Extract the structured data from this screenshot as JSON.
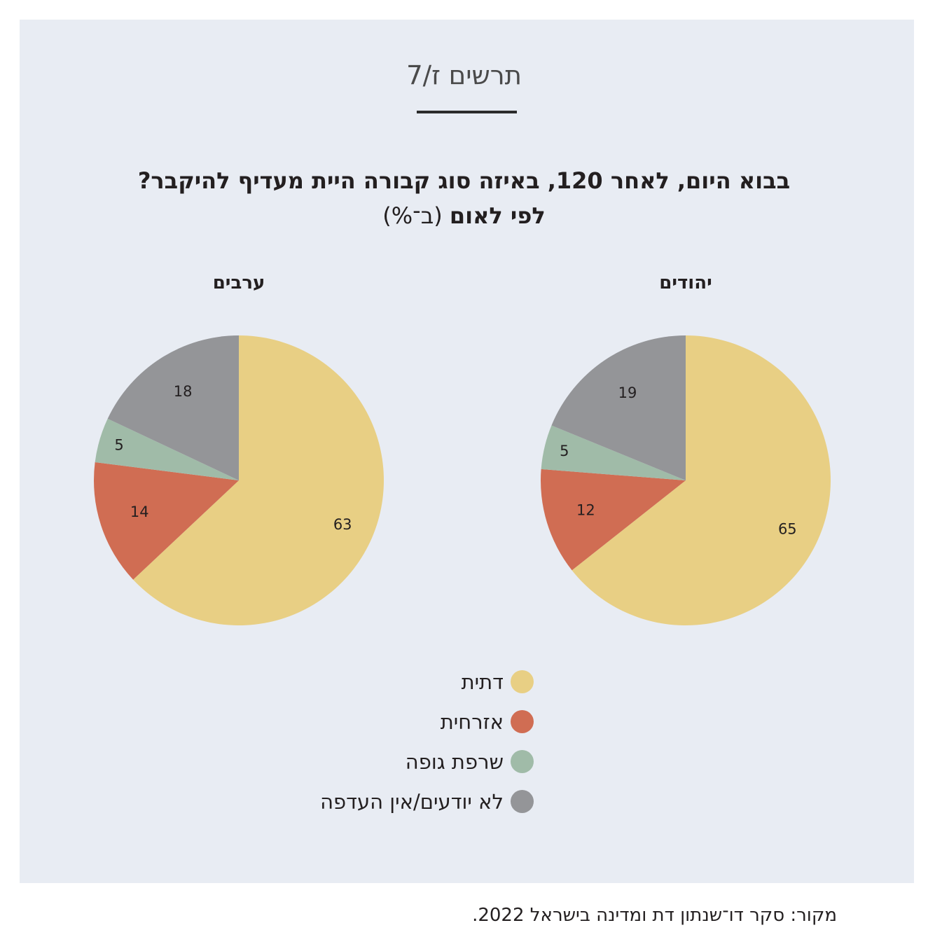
{
  "figure_label": "תרשים ז/7",
  "source": "מקור: סקר דו־שנתון דת ומדינה בישראל 2022.",
  "chart_data": [
    {
      "type": "pie",
      "title_line1": "בבוא היום, לאחר 120, באיזה סוג קבורה היית מעדיף להיקבר?",
      "title_line2_bold": "לפי לאום",
      "title_line2_normal": "(ב־%)",
      "pie_title": "יהודים",
      "categories": [
        "דתית",
        "אזרחית",
        "שרפת גופה",
        "לא יודעים/אין העדפה"
      ],
      "values": [
        65,
        12,
        5,
        19
      ],
      "colors": [
        "#e8cf84",
        "#d06d53",
        "#a0bba8",
        "#949598"
      ]
    },
    {
      "type": "pie",
      "pie_title": "ערבים",
      "categories": [
        "דתית",
        "אזרחית",
        "שרפת גופה",
        "לא יודעים/אין העדפה"
      ],
      "values": [
        63,
        14,
        5,
        18
      ],
      "colors": [
        "#e8cf84",
        "#d06d53",
        "#a0bba8",
        "#949598"
      ]
    }
  ],
  "legend": [
    {
      "label": "דתית",
      "color": "#e8cf84"
    },
    {
      "label": "אזרחית",
      "color": "#d06d53"
    },
    {
      "label": "שרפת גופה",
      "color": "#a0bba8"
    },
    {
      "label": "לא יודעים/אין העדפה",
      "color": "#949598"
    }
  ]
}
